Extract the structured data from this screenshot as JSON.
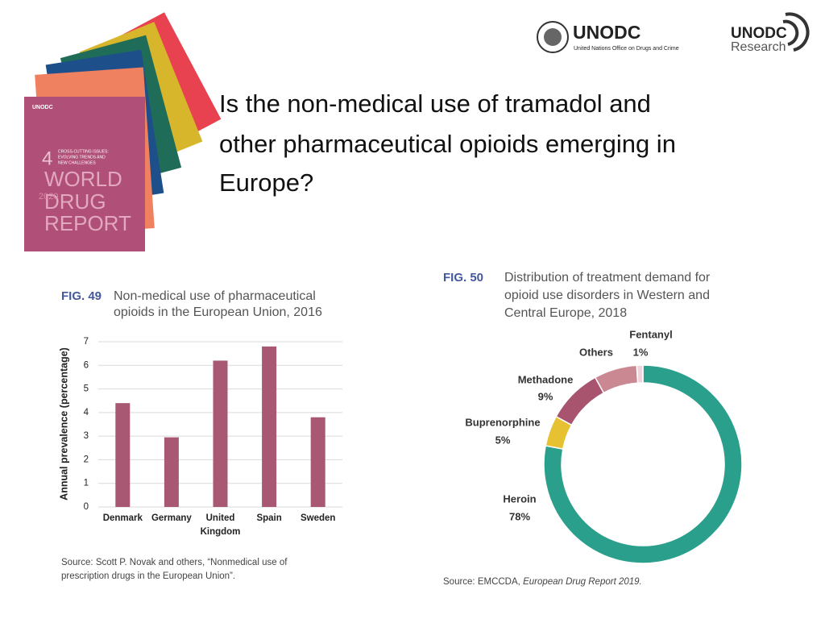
{
  "logos": {
    "unodc": "UNODC",
    "unodc_sub": "United Nations Office on Drugs and Crime",
    "research_top": "UNODC",
    "research_bottom": "Research"
  },
  "cover": {
    "brand": "UNODC",
    "number": "4",
    "subtitle_lines": [
      "CROSS-CUTTING ISSUES:",
      "EVOLVING TRENDS AND",
      "NEW CHALLENGES"
    ],
    "title_lines": [
      "WORLD",
      "DRUG",
      "REPORT"
    ],
    "year": "2020"
  },
  "title_lines": [
    "Is the non-medical use of tramadol and",
    "other pharmaceutical opioids emerging in",
    "Europe?"
  ],
  "chart_data": [
    {
      "type": "bar",
      "figure": "FIG. 49",
      "title": [
        "Non-medical use of pharmaceutical",
        "opioids in the European Union, 2016"
      ],
      "y_label": "Annual prevalence (percentage)",
      "categories": [
        "Denmark",
        "Germany",
        "United Kingdom",
        "Spain",
        "Sweden"
      ],
      "values": [
        4.4,
        2.95,
        6.2,
        6.8,
        3.8
      ],
      "color": "#a85873",
      "ylim": [
        0,
        7
      ],
      "yticks": [
        0,
        1,
        2,
        3,
        4,
        5,
        6,
        7
      ],
      "grid": true,
      "source": [
        "Source: Scott P. Novak and others, “Nonmedical use of",
        "prescription drugs in the European Union”."
      ]
    },
    {
      "type": "donut",
      "figure": "FIG. 50",
      "title": [
        "Distribution of treatment demand for",
        "opioid use disorders in Western and",
        "Central Europe, 2018"
      ],
      "categories": [
        "Heroin",
        "Buprenorphine",
        "Methadone",
        "Others",
        "Fentanyl"
      ],
      "values": [
        78,
        5,
        9,
        7,
        1
      ],
      "value_labels": [
        "78%",
        "5%",
        "9%",
        null,
        "1%"
      ],
      "colors": [
        "#2a9f8c",
        "#e6c131",
        "#a9546f",
        "#c98892",
        "#f0d3da"
      ],
      "source": {
        "prefix": "Source: EMCCDA, ",
        "italic": "European Drug Report 2019."
      }
    }
  ]
}
